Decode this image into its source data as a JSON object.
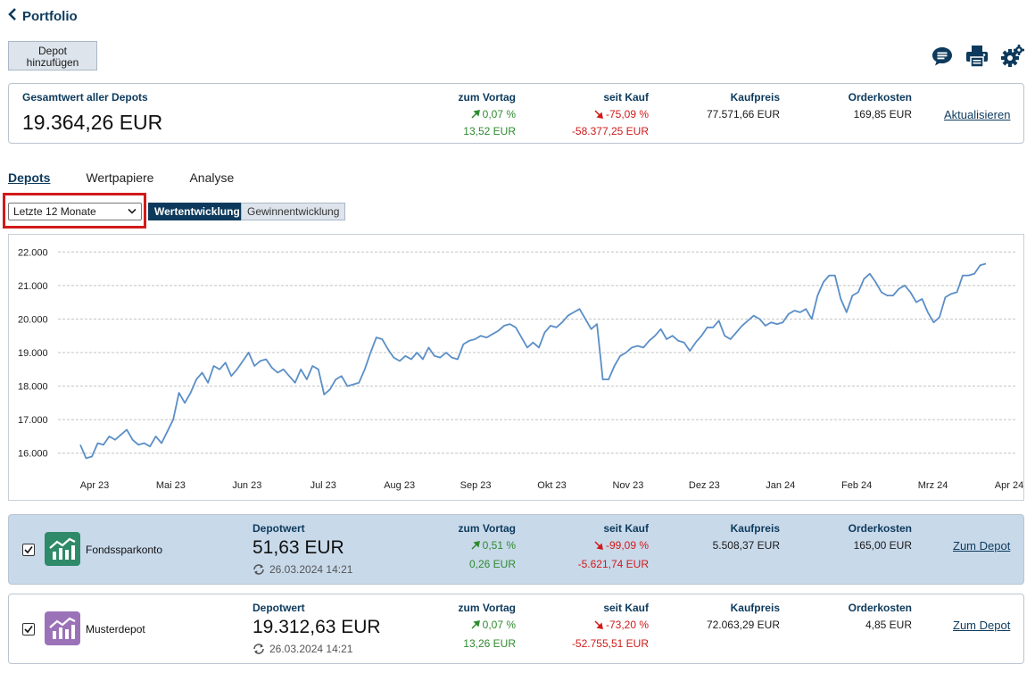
{
  "header": {
    "back_label": "Portfolio",
    "add_button": "Depot\nhinzufügen"
  },
  "icons": {
    "comment": "comment-icon",
    "print": "print-icon",
    "settings": "settings-gear-icon"
  },
  "summary": {
    "title": "Gesamtwert aller Depots",
    "total": "19.364,26 EUR",
    "prev_day_label": "zum Vortag",
    "prev_day_pct": "0,07 %",
    "prev_day_abs": "13,52 EUR",
    "since_buy_label": "seit Kauf",
    "since_buy_pct": "-75,09 %",
    "since_buy_abs": "-58.377,25 EUR",
    "price_label": "Kaufpreis",
    "price": "77.571,66 EUR",
    "cost_label": "Orderkosten",
    "cost": "169,85 EUR",
    "refresh": "Aktualisieren"
  },
  "tabs": [
    "Depots",
    "Wertpapiere",
    "Analyse"
  ],
  "range": {
    "selected": "Letzte 12 Monate"
  },
  "toggle": {
    "on": "Wertentwicklung",
    "off": "Gewinnentwicklung"
  },
  "colors": {
    "accent": "#0d3a5c",
    "line": "#5b8ec7",
    "positive": "#2f8a2f",
    "negative": "#d11a1a",
    "highlight": "#d11a1a"
  },
  "chart_data": {
    "type": "line",
    "ylim": [
      15700,
      22300
    ],
    "yticks": [
      16000,
      17000,
      18000,
      19000,
      20000,
      21000,
      22000
    ],
    "ytick_labels": [
      "16.000",
      "17.000",
      "18.000",
      "19.000",
      "20.000",
      "21.000",
      "22.000"
    ],
    "xtick_labels": [
      "Apr 23",
      "Mai 23",
      "Jun 23",
      "Jul 23",
      "Aug 23",
      "Sep 23",
      "Okt 23",
      "Nov 23",
      "Dez 23",
      "Jan 24",
      "Feb 24",
      "Mrz 24",
      "Apr 24"
    ],
    "grid": true,
    "series": [
      {
        "values": [
          16250,
          15850,
          15900,
          16300,
          16250,
          16500,
          16400,
          16550,
          16700,
          16400,
          16250,
          16300,
          16200,
          16500,
          16300,
          16650,
          17000,
          17800,
          17500,
          17800,
          18200,
          18400,
          18100,
          18600,
          18500,
          18700,
          18300,
          18500,
          18750,
          19000,
          18600,
          18750,
          18800,
          18550,
          18400,
          18500,
          18300,
          18100,
          18500,
          18200,
          18600,
          18500,
          17750,
          17900,
          18200,
          18300,
          18000,
          18050,
          18100,
          18500,
          19000,
          19450,
          19400,
          19100,
          18850,
          18750,
          18900,
          18800,
          19000,
          18800,
          19150,
          18900,
          18850,
          19000,
          18850,
          18800,
          19250,
          19350,
          19400,
          19500,
          19450,
          19550,
          19650,
          19800,
          19850,
          19750,
          19450,
          19150,
          19300,
          19150,
          19600,
          19800,
          19750,
          19900,
          20100,
          20200,
          20300,
          20000,
          19700,
          19850,
          18200,
          18200,
          18600,
          18900,
          19000,
          19150,
          19200,
          19150,
          19350,
          19500,
          19700,
          19400,
          19500,
          19350,
          19300,
          19050,
          19300,
          19500,
          19750,
          19750,
          19950,
          19500,
          19400,
          19600,
          19800,
          19950,
          20100,
          20000,
          19800,
          19900,
          19850,
          19900,
          20150,
          20250,
          20200,
          20300,
          20000,
          20700,
          21100,
          21300,
          21300,
          20600,
          20200,
          20700,
          20800,
          21200,
          21350,
          21100,
          20800,
          20700,
          20700,
          20900,
          21000,
          20800,
          20500,
          20600,
          20200,
          19900,
          20050,
          20650,
          20750,
          20800,
          21300,
          21300,
          21350,
          21600,
          21650
        ]
      }
    ]
  },
  "depots": [
    {
      "name": "Fondssparkonto",
      "value_label": "Depotwert",
      "value": "51,63 EUR",
      "timestamp": "26.03.2024 14:21",
      "prev_day_label": "zum Vortag",
      "prev_day_pct": "0,51 %",
      "prev_day_abs": "0,26 EUR",
      "since_buy_label": "seit Kauf",
      "since_buy_pct": "-99,09 %",
      "since_buy_abs": "-5.621,74 EUR",
      "price_label": "Kaufpreis",
      "price": "5.508,37 EUR",
      "cost_label": "Orderkosten",
      "cost": "165,00 EUR",
      "link": "Zum Depot",
      "icon_color": "#2f8a6a"
    },
    {
      "name": "Musterdepot",
      "value_label": "Depotwert",
      "value": "19.312,63 EUR",
      "timestamp": "26.03.2024 14:21",
      "prev_day_label": "zum Vortag",
      "prev_day_pct": "0,07 %",
      "prev_day_abs": "13,26 EUR",
      "since_buy_label": "seit Kauf",
      "since_buy_pct": "-73,20 %",
      "since_buy_abs": "-52.755,51 EUR",
      "price_label": "Kaufpreis",
      "price": "72.063,29 EUR",
      "cost_label": "Orderkosten",
      "cost": "4,85 EUR",
      "link": "Zum Depot",
      "icon_color": "#9b72b8"
    }
  ]
}
